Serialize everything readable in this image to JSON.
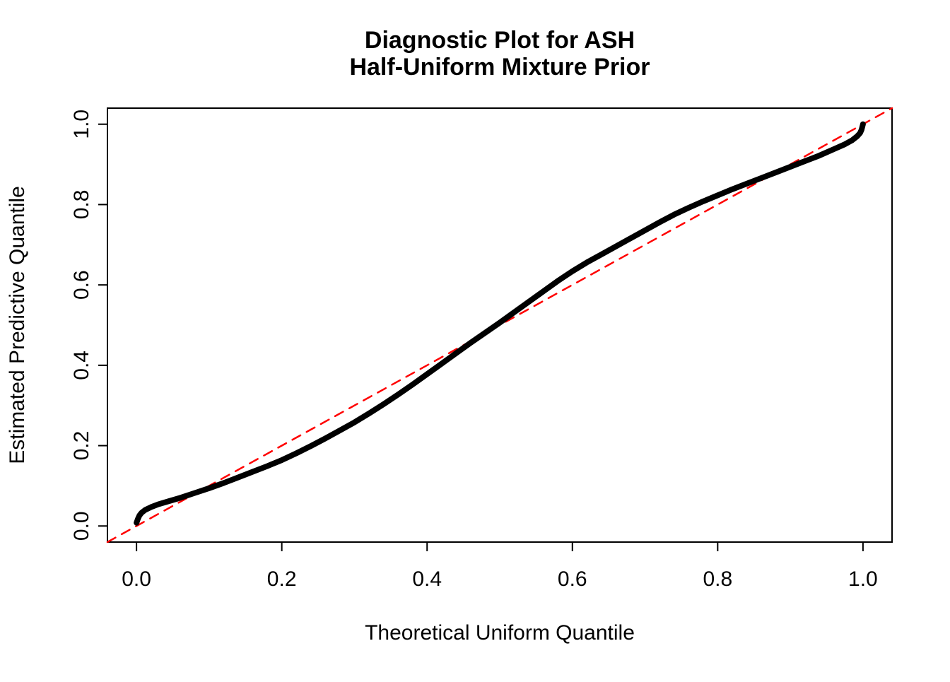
{
  "title": {
    "line1": "Diagnostic Plot for ASH",
    "line2": "Half-Uniform Mixture Prior"
  },
  "axes": {
    "xlabel": "Theoretical Uniform Quantile",
    "ylabel": "Estimated Predictive Quantile",
    "x_tick_labels": [
      "0.0",
      "0.2",
      "0.4",
      "0.6",
      "0.8",
      "1.0"
    ],
    "y_tick_labels": [
      "0.0",
      "0.2",
      "0.4",
      "0.6",
      "0.8",
      "1.0"
    ]
  },
  "colors": {
    "curve": "#000000",
    "reference_line": "#FF0000",
    "background": "#FFFFFF"
  },
  "chart_data": {
    "type": "line",
    "title": "Diagnostic Plot for ASH\nHalf-Uniform Mixture Prior",
    "xlabel": "Theoretical Uniform Quantile",
    "ylabel": "Estimated Predictive Quantile",
    "xlim": [
      -0.04,
      1.04
    ],
    "ylim": [
      -0.04,
      1.04
    ],
    "x_ticks": [
      0.0,
      0.2,
      0.4,
      0.6,
      0.8,
      1.0
    ],
    "y_ticks": [
      0.0,
      0.2,
      0.4,
      0.6,
      0.8,
      1.0
    ],
    "grid": false,
    "legend": "none",
    "series": [
      {
        "name": "reference-line-y-equals-x",
        "color": "#FF0000",
        "style": "dashed",
        "width": 2.5,
        "x": [
          -0.04,
          1.04
        ],
        "y": [
          -0.04,
          1.04
        ]
      },
      {
        "name": "estimated-vs-theoretical-quantiles",
        "color": "#000000",
        "style": "solid",
        "width": 8,
        "x": [
          0.0,
          0.002,
          0.004,
          0.007,
          0.012,
          0.02,
          0.03,
          0.045,
          0.06,
          0.08,
          0.1,
          0.12,
          0.14,
          0.16,
          0.18,
          0.2,
          0.22,
          0.24,
          0.26,
          0.28,
          0.3,
          0.32,
          0.34,
          0.36,
          0.38,
          0.4,
          0.42,
          0.44,
          0.46,
          0.48,
          0.5,
          0.52,
          0.54,
          0.56,
          0.58,
          0.6,
          0.62,
          0.64,
          0.66,
          0.68,
          0.7,
          0.72,
          0.74,
          0.76,
          0.78,
          0.8,
          0.82,
          0.84,
          0.86,
          0.88,
          0.9,
          0.92,
          0.94,
          0.96,
          0.975,
          0.985,
          0.992,
          0.996,
          0.998,
          1.0
        ],
        "y": [
          0.008,
          0.018,
          0.026,
          0.033,
          0.04,
          0.047,
          0.054,
          0.062,
          0.07,
          0.082,
          0.094,
          0.107,
          0.121,
          0.135,
          0.149,
          0.164,
          0.181,
          0.199,
          0.218,
          0.238,
          0.258,
          0.28,
          0.303,
          0.327,
          0.352,
          0.378,
          0.404,
          0.43,
          0.456,
          0.481,
          0.506,
          0.532,
          0.558,
          0.584,
          0.61,
          0.634,
          0.656,
          0.676,
          0.696,
          0.716,
          0.736,
          0.756,
          0.775,
          0.792,
          0.808,
          0.823,
          0.838,
          0.852,
          0.866,
          0.88,
          0.894,
          0.908,
          0.922,
          0.938,
          0.95,
          0.96,
          0.97,
          0.978,
          0.986,
          1.0
        ]
      }
    ]
  }
}
